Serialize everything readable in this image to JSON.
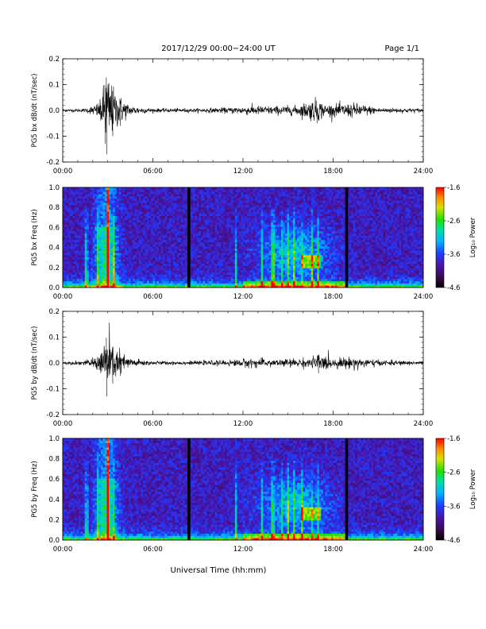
{
  "header": {
    "title": "2017/12/29  00:00−24:00 UT",
    "page": "Page 1/1"
  },
  "x_axis": {
    "label": "Universal Time (hh:mm)",
    "ticks": [
      "00:00",
      "06:00",
      "12:00",
      "18:00",
      "24:00"
    ]
  },
  "colorbar": {
    "label": "Log₁₀ Power",
    "ticks": [
      "-1.6",
      "-2.6",
      "-3.6",
      "-4.6"
    ],
    "range": [
      -4.6,
      -1.6
    ]
  },
  "chart_data": [
    {
      "type": "line",
      "ylabel": "PG5 bx dB/dt (nT/sec)",
      "ylim": [
        -0.2,
        0.2
      ],
      "yticks": [
        "0.2",
        "0.1",
        "0.0",
        "-0.1",
        "-0.2"
      ],
      "xlim_hours": [
        0,
        24
      ],
      "series": [
        {
          "values": [
            {
              "t": 0.0,
              "amp": 0.005
            },
            {
              "t": 1.5,
              "amp": 0.008
            },
            {
              "t": 2.0,
              "amp": 0.02
            },
            {
              "t": 2.5,
              "amp": 0.04
            },
            {
              "t": 2.8,
              "amp": 0.13
            },
            {
              "t": 2.9,
              "amp": 0.17
            },
            {
              "t": 3.3,
              "amp": 0.1
            },
            {
              "t": 3.8,
              "amp": 0.06
            },
            {
              "t": 4.5,
              "amp": 0.02
            },
            {
              "t": 6.0,
              "amp": 0.008
            },
            {
              "t": 9.0,
              "amp": 0.008
            },
            {
              "t": 11.0,
              "amp": 0.012
            },
            {
              "t": 12.5,
              "amp": 0.02
            },
            {
              "t": 14.0,
              "amp": 0.018
            },
            {
              "t": 15.5,
              "amp": 0.02
            },
            {
              "t": 16.9,
              "amp": 0.05
            },
            {
              "t": 17.5,
              "amp": 0.025
            },
            {
              "t": 19.5,
              "amp": 0.03
            },
            {
              "t": 21.0,
              "amp": 0.012
            },
            {
              "t": 24.0,
              "amp": 0.008
            }
          ]
        }
      ]
    },
    {
      "type": "heatmap",
      "ylabel": "PG5 bx Freq (Hz)",
      "ylim": [
        0.0,
        1.0
      ],
      "yticks": [
        "1.0",
        "0.8",
        "0.6",
        "0.4",
        "0.2",
        "0.0"
      ],
      "xlim_hours": [
        0,
        24
      ],
      "zlim": [
        -4.6,
        -1.6
      ],
      "data_gaps_hours": [
        8.4,
        18.9
      ]
    },
    {
      "type": "line",
      "ylabel": "PG5 by dB/dt (nT/sec)",
      "ylim": [
        -0.2,
        0.2
      ],
      "yticks": [
        "0.2",
        "0.1",
        "0.0",
        "-0.1",
        "-0.2"
      ],
      "xlim_hours": [
        0,
        24
      ],
      "series": [
        {
          "values": [
            {
              "t": 0.0,
              "amp": 0.005
            },
            {
              "t": 1.5,
              "amp": 0.01
            },
            {
              "t": 2.0,
              "amp": 0.02
            },
            {
              "t": 2.5,
              "amp": 0.04
            },
            {
              "t": 2.9,
              "amp": 0.13
            },
            {
              "t": 3.3,
              "amp": 0.08
            },
            {
              "t": 3.8,
              "amp": 0.05
            },
            {
              "t": 4.5,
              "amp": 0.02
            },
            {
              "t": 6.0,
              "amp": 0.008
            },
            {
              "t": 9.0,
              "amp": 0.008
            },
            {
              "t": 11.0,
              "amp": 0.012
            },
            {
              "t": 12.5,
              "amp": 0.02
            },
            {
              "t": 14.0,
              "amp": 0.015
            },
            {
              "t": 16.5,
              "amp": 0.02
            },
            {
              "t": 17.0,
              "amp": 0.04
            },
            {
              "t": 18.0,
              "amp": 0.02
            },
            {
              "t": 19.5,
              "amp": 0.025
            },
            {
              "t": 21.0,
              "amp": 0.012
            },
            {
              "t": 24.0,
              "amp": 0.008
            }
          ]
        }
      ]
    },
    {
      "type": "heatmap",
      "ylabel": "PG5 by Freq (Hz)",
      "ylim": [
        0.0,
        1.0
      ],
      "yticks": [
        "1.0",
        "0.8",
        "0.6",
        "0.4",
        "0.2",
        "0.0"
      ],
      "xlim_hours": [
        0,
        24
      ],
      "zlim": [
        -4.6,
        -1.6
      ],
      "data_gaps_hours": [
        8.4,
        18.9
      ]
    }
  ]
}
